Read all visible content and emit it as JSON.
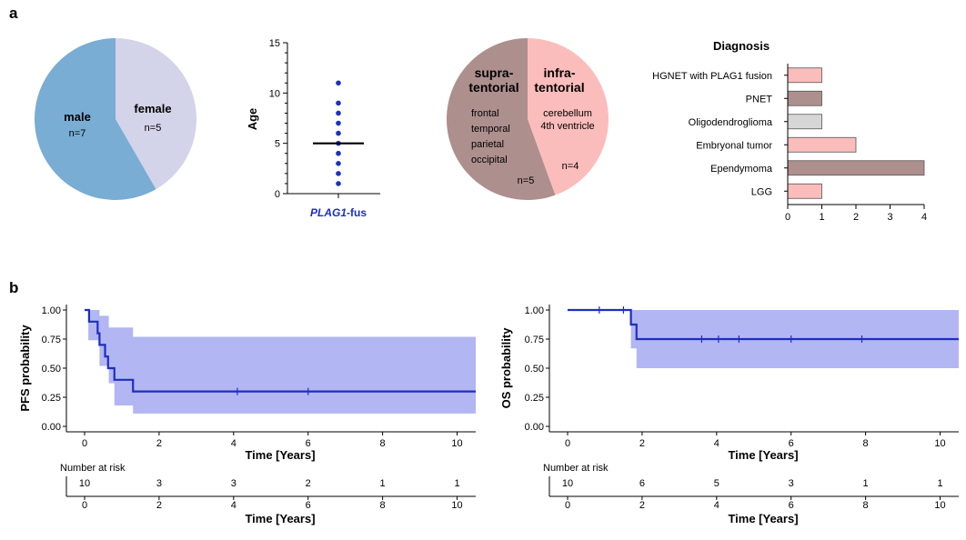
{
  "colors": {
    "male": "#79add3",
    "female": "#d3d3e9",
    "supra": "#ad8f8e",
    "infra": "#fbbdbb",
    "dots": "#1d2fc0",
    "km_line": "#1d2fc0",
    "km_band": "#b2b6f3",
    "bar_pink": "#fbbdbb",
    "bar_mauve": "#ad8f8e",
    "bar_gray": "#d6d6d6"
  },
  "panels": {
    "a_label": "a",
    "b_label": "b"
  },
  "chart_data": [
    {
      "type": "pie",
      "id": "sex",
      "slices": [
        {
          "label": "male",
          "count_label": "n=7",
          "value": 7,
          "color_key": "male"
        },
        {
          "label": "female",
          "count_label": "n=5",
          "value": 5,
          "color_key": "female"
        }
      ]
    },
    {
      "type": "scatter",
      "id": "age",
      "ylabel": "Age",
      "yticks": [
        0,
        5,
        10,
        15
      ],
      "ylim": [
        0,
        15
      ],
      "group_label_italic": "PLAG1",
      "group_label_rest": "-fus",
      "values": [
        1,
        2,
        3,
        4,
        5,
        6,
        7,
        8,
        9,
        11
      ],
      "median": 5
    },
    {
      "type": "pie",
      "id": "location",
      "slices": [
        {
          "label_line1": "supra-",
          "label_line2": "tentorial",
          "details": [
            "frontal",
            "temporal",
            "parietal",
            "occipital"
          ],
          "count_label": "n=5",
          "value": 5,
          "color_key": "supra"
        },
        {
          "label_line1": "infra-",
          "label_line2": "tentorial",
          "details": [
            "cerebellum",
            "4th ventricle"
          ],
          "count_label": "n=4",
          "value": 4,
          "color_key": "infra"
        }
      ]
    },
    {
      "type": "bar",
      "id": "diagnosis",
      "orientation": "horizontal",
      "title": "Diagnosis",
      "categories": [
        "HGNET with PLAG1 fusion",
        "PNET",
        "Oligodendroglioma",
        "Embryonal tumor",
        "Ependymoma",
        "LGG"
      ],
      "values": [
        1,
        1,
        1,
        2,
        4,
        1
      ],
      "color_keys": [
        "bar_pink",
        "bar_mauve",
        "bar_gray",
        "bar_pink",
        "bar_mauve",
        "bar_pink"
      ],
      "xticks": [
        0,
        1,
        2,
        3,
        4
      ],
      "xlim": [
        0,
        4
      ]
    },
    {
      "type": "line",
      "id": "pfs",
      "ylabel": "PFS probability",
      "xlabel": "Time [Years]",
      "yticks": [
        "0.00",
        "0.25",
        "0.50",
        "0.75",
        "1.00"
      ],
      "xticks": [
        0,
        2,
        4,
        6,
        8,
        10
      ],
      "xlim": [
        0,
        10.5
      ],
      "ylim": [
        0,
        1
      ],
      "steps": [
        [
          0,
          1.0
        ],
        [
          0.12,
          0.9
        ],
        [
          0.35,
          0.8
        ],
        [
          0.4,
          0.7
        ],
        [
          0.55,
          0.6
        ],
        [
          0.63,
          0.5
        ],
        [
          0.8,
          0.4
        ],
        [
          1.3,
          0.3
        ]
      ],
      "end_x": 10.5,
      "censored": [
        [
          4.1,
          0.3
        ],
        [
          6.0,
          0.3
        ]
      ],
      "ci": [
        [
          0,
          1.0,
          1.0
        ],
        [
          0.1,
          0.74,
          1.0
        ],
        [
          0.4,
          0.52,
          0.95
        ],
        [
          0.65,
          0.37,
          0.85
        ],
        [
          0.8,
          0.18,
          0.85
        ],
        [
          1.3,
          0.11,
          0.77
        ],
        [
          10.5,
          0.11,
          0.77
        ]
      ],
      "risk_title": "Number at risk",
      "risk_x": [
        0,
        2,
        4,
        6,
        8,
        10
      ],
      "risk_values": [
        "10",
        "3",
        "3",
        "2",
        "1",
        "1"
      ],
      "risk_xlabel": "Time [Years]"
    },
    {
      "type": "line",
      "id": "os",
      "ylabel": "OS probability",
      "xlabel": "Time [Years]",
      "yticks": [
        "0.00",
        "0.25",
        "0.50",
        "0.75",
        "1.00"
      ],
      "xticks": [
        0,
        2,
        4,
        6,
        8,
        10
      ],
      "xlim": [
        0,
        10.5
      ],
      "ylim": [
        0,
        1
      ],
      "steps": [
        [
          0,
          1.0
        ],
        [
          1.7,
          0.875
        ],
        [
          1.85,
          0.75
        ]
      ],
      "end_x": 10.5,
      "censored": [
        [
          0.85,
          1.0
        ],
        [
          1.5,
          1.0
        ],
        [
          3.6,
          0.75
        ],
        [
          4.05,
          0.75
        ],
        [
          4.6,
          0.75
        ],
        [
          6.0,
          0.75
        ],
        [
          7.9,
          0.75
        ]
      ],
      "ci": [
        [
          0,
          1.0,
          1.0
        ],
        [
          1.7,
          0.67,
          1.0
        ],
        [
          1.85,
          0.5,
          1.0
        ],
        [
          10.5,
          0.5,
          1.0
        ]
      ],
      "risk_title": "Number at risk",
      "risk_x": [
        0,
        2,
        4,
        6,
        8,
        10
      ],
      "risk_values": [
        "10",
        "6",
        "5",
        "3",
        "1",
        "1"
      ],
      "risk_xlabel": "Time [Years]"
    }
  ]
}
